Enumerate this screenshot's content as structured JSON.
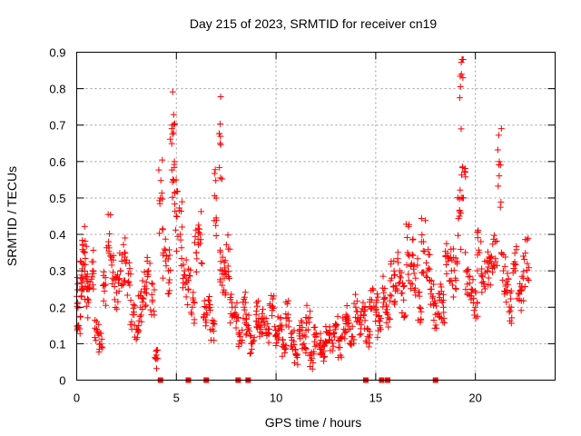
{
  "chart_data": {
    "type": "scatter",
    "title": "Day 215 of 2023, SRMTID for receiver cn19",
    "xlabel": "GPS time / hours",
    "ylabel": "SRMTID / TECUs",
    "xlim": [
      0,
      24
    ],
    "ylim": [
      0,
      0.9
    ],
    "xticks": [
      0,
      5,
      10,
      15,
      20
    ],
    "yticks": [
      0,
      0.1,
      0.2,
      0.3,
      0.4,
      0.5,
      0.6,
      0.7,
      0.8,
      0.9
    ],
    "grid": true,
    "marker": "+",
    "color": "#ff0000",
    "series": [
      {
        "name": "SRMTID",
        "x": [
          0.0,
          0.1,
          0.2,
          0.3,
          0.4,
          0.5,
          0.6,
          0.8,
          1.0,
          1.2,
          1.4,
          1.6,
          1.8,
          2.0,
          2.2,
          2.4,
          2.6,
          2.8,
          3.0,
          3.2,
          3.4,
          3.6,
          3.8,
          4.0,
          4.2,
          4.4,
          4.6,
          4.8,
          4.9,
          5.0,
          5.2,
          5.4,
          5.6,
          5.8,
          6.0,
          6.2,
          6.4,
          6.6,
          6.8,
          7.0,
          7.2,
          7.3,
          7.4,
          7.6,
          7.8,
          8.0,
          8.2,
          8.4,
          8.6,
          8.8,
          9.0,
          9.2,
          9.4,
          9.6,
          9.8,
          10.0,
          10.2,
          10.4,
          10.6,
          10.8,
          11.0,
          11.2,
          11.4,
          11.6,
          11.8,
          12.0,
          12.2,
          12.4,
          12.6,
          12.8,
          13.0,
          13.2,
          13.4,
          13.6,
          13.8,
          14.0,
          14.2,
          14.4,
          14.6,
          14.8,
          15.0,
          15.2,
          15.4,
          15.6,
          15.8,
          16.0,
          16.2,
          16.4,
          16.6,
          16.8,
          17.0,
          17.2,
          17.4,
          17.6,
          17.8,
          18.0,
          18.2,
          18.4,
          18.6,
          18.8,
          19.0,
          19.2,
          19.3,
          19.4,
          19.6,
          19.8,
          20.0,
          20.2,
          20.4,
          20.6,
          20.8,
          21.0,
          21.2,
          21.4,
          21.6,
          21.8,
          22.0,
          22.2,
          22.4,
          22.6
        ],
        "y": [
          0.23,
          0.15,
          0.28,
          0.32,
          0.35,
          0.25,
          0.22,
          0.3,
          0.14,
          0.1,
          0.26,
          0.38,
          0.28,
          0.24,
          0.3,
          0.33,
          0.27,
          0.18,
          0.14,
          0.2,
          0.25,
          0.3,
          0.22,
          0.06,
          0.5,
          0.36,
          0.3,
          0.7,
          0.6,
          0.45,
          0.4,
          0.3,
          0.25,
          0.2,
          0.35,
          0.4,
          0.18,
          0.22,
          0.14,
          0.5,
          0.65,
          0.3,
          0.28,
          0.36,
          0.2,
          0.18,
          0.12,
          0.2,
          0.15,
          0.1,
          0.18,
          0.14,
          0.16,
          0.13,
          0.2,
          0.12,
          0.15,
          0.09,
          0.18,
          0.11,
          0.07,
          0.14,
          0.1,
          0.17,
          0.06,
          0.12,
          0.1,
          0.08,
          0.13,
          0.11,
          0.15,
          0.09,
          0.14,
          0.17,
          0.12,
          0.2,
          0.16,
          0.18,
          0.12,
          0.22,
          0.2,
          0.15,
          0.24,
          0.18,
          0.28,
          0.26,
          0.3,
          0.22,
          0.35,
          0.32,
          0.28,
          0.2,
          0.38,
          0.3,
          0.25,
          0.18,
          0.22,
          0.2,
          0.34,
          0.3,
          0.28,
          0.45,
          0.84,
          0.5,
          0.3,
          0.25,
          0.2,
          0.35,
          0.27,
          0.3,
          0.32,
          0.38,
          0.6,
          0.3,
          0.24,
          0.2,
          0.3,
          0.22,
          0.28,
          0.32
        ],
        "zeros_x": [
          4.2,
          5.6,
          6.5,
          8.1,
          8.6,
          14.5,
          15.3,
          15.6,
          18.0
        ]
      }
    ]
  }
}
